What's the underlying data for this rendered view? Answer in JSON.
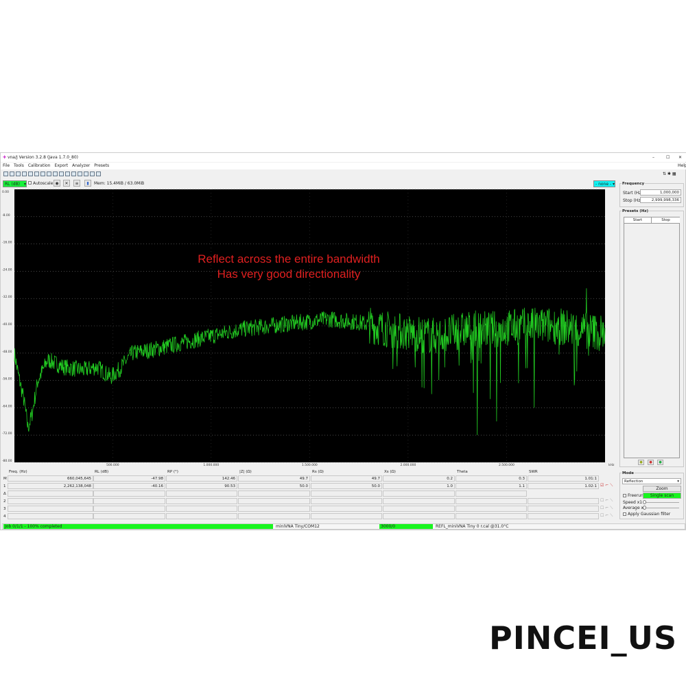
{
  "window": {
    "title": "vna/J Version 3.2.8 (Java 1.7.0_80)",
    "minimize": "–",
    "maximize": "☐",
    "close": "✕"
  },
  "menu": [
    "File",
    "Tools",
    "Calibration",
    "Export",
    "Analyzer",
    "Presets"
  ],
  "help": "Help",
  "chart_toolbar": {
    "trace_select": "RL (dB)",
    "autoscale": "Autoscale",
    "memory": "Mem: 15.4MiB / 63.0MiB",
    "overlay_select": "- none -"
  },
  "annotation": {
    "line1": "Reflect across the entire bandwidth",
    "line2": "Has very good directionality",
    "color": "#e02020"
  },
  "chart_data": {
    "type": "line",
    "background": "#000000",
    "trace_color": "#22cc22",
    "grid": true,
    "x_unit": "kHz",
    "xlim": [
      1000,
      3000000
    ],
    "ylim": [
      -80,
      0
    ],
    "y_ticks": [
      "0.00",
      "-8.00",
      "-16.00",
      "-24.00",
      "-32.00",
      "-40.00",
      "-48.00",
      "-56.00",
      "-64.00",
      "-72.00",
      "-80.00"
    ],
    "x_ticks": [
      {
        "v": 500000,
        "label": "500.000"
      },
      {
        "v": 1000000,
        "label": "1.000.000"
      },
      {
        "v": 1500000,
        "label": "1.500.000"
      },
      {
        "v": 2000000,
        "label": "2.000.000"
      },
      {
        "v": 2500000,
        "label": "2.500.000"
      }
    ],
    "series": [
      {
        "values_x_kHz": [
          1000,
          20000,
          50000,
          70000,
          90000,
          120000,
          170000,
          250000,
          350000,
          420000,
          490000,
          530000,
          600000,
          700000,
          850000,
          1000000,
          1150000,
          1300000,
          1450000,
          1600000,
          1750000,
          1900000,
          2000000,
          2150000,
          2300000,
          2450000,
          2600000,
          2750000,
          2850000,
          3000000
        ],
        "values_db": [
          -48,
          -54,
          -62,
          -70,
          -66,
          -56,
          -50,
          -52,
          -53,
          -52,
          -55,
          -53,
          -48,
          -47,
          -45,
          -43,
          -41,
          -40,
          -39,
          -38,
          -39,
          -41,
          -42,
          -43,
          -41,
          -41,
          -40,
          -40,
          -41,
          -42
        ]
      }
    ],
    "spikes": [
      {
        "x_kHz": 2350000,
        "db": -72
      },
      {
        "x_kHz": 2450000,
        "db": -68
      },
      {
        "x_kHz": 2120000,
        "db": -60
      },
      {
        "x_kHz": 2640000,
        "db": -64
      },
      {
        "x_kHz": 2070000,
        "db": -58
      },
      {
        "x_kHz": 2905000,
        "db": -29
      }
    ]
  },
  "table": {
    "headers": [
      "Freq. (Hz)",
      "RL (dB)",
      "RP (°)",
      "|Z| (Ω)",
      "Rs (Ω)",
      "Xs (Ω)",
      "Theta",
      "SWR"
    ],
    "row_labels": [
      "M",
      "1",
      "Δ",
      "2",
      "3",
      "4"
    ],
    "rows": [
      [
        "660,045,645",
        "-47.98",
        "142.46",
        "49.7",
        "49.7",
        "0.2",
        "0.3",
        "1.01:1"
      ],
      [
        "2,262,138,048",
        "-40.16",
        "90.53",
        "50.0",
        "50.0",
        "1.0",
        "1.1",
        "1.02:1"
      ]
    ]
  },
  "frequency": {
    "title": "Frequency",
    "start_label": "Start (Hz)",
    "start_value": "1,000,000",
    "stop_label": "Stop (Hz)",
    "stop_value": "2,999,998,336"
  },
  "presets": {
    "title": "Presets (Hz)",
    "col_start": "Start",
    "col_stop": "Stop"
  },
  "mode": {
    "title": "Mode",
    "select": "Reflection",
    "zoom": "Zoom",
    "freerun": "Freerun",
    "single_scan": "Single scan",
    "speed": "Speed x1",
    "average": "Average x1",
    "gaussian": "Apply Gaussian filter"
  },
  "status": {
    "job": "Job 0/1/1 - 100% completed",
    "device": "miniVNA Tiny/COM12",
    "samples": "3000/0",
    "cal": "REFL_miniVNA Tiny 0 r.cal @31.0°C",
    "progress_percent": 100
  },
  "watermark": "PINCEI_US"
}
